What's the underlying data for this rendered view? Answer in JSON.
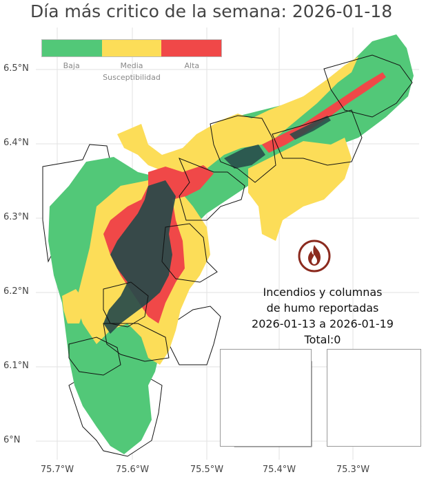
{
  "title": "Día más critico de la semana: 2026-01-18",
  "legend": {
    "labels": [
      "Baja",
      "Media",
      "Alta"
    ],
    "title": "Susceptibilidad",
    "colors": {
      "baja": "#52c878",
      "media": "#fcdd58",
      "alta": "#f04848",
      "dense": "#274a4a"
    }
  },
  "axes": {
    "y_labels": [
      "6.5°N",
      "6.4°N",
      "6.3°N",
      "6.2°N",
      "6.1°N",
      "6°N"
    ],
    "x_labels": [
      "75.7°W",
      "75.6°W",
      "75.5°W",
      "75.4°W",
      "75.3°W"
    ]
  },
  "info": {
    "line1": "Incendios y columnas",
    "line2": "de humo reportadas",
    "line3": "2026-01-13 a 2026-01-19",
    "line4": "Total:0"
  },
  "icons": {
    "fire": "fire-icon"
  },
  "insets": {
    "ocean_color": "#96b4e0",
    "region_color": "#b8dcb8"
  }
}
